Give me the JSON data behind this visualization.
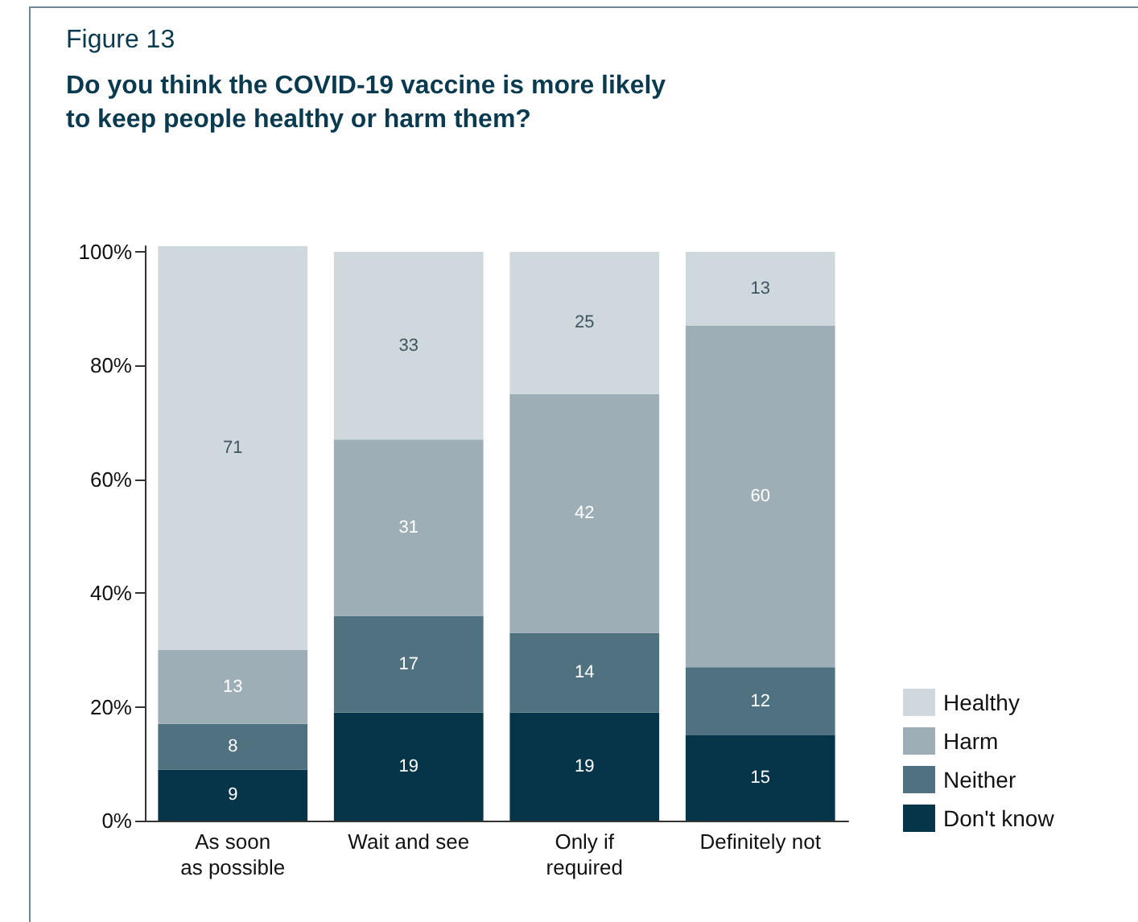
{
  "chart_data": {
    "type": "bar",
    "stacked": true,
    "title": "Figure 13",
    "subtitle": "Do you think the COVID-19 vaccine is more likely\nto keep people healthy or harm them?",
    "categories": [
      "As soon\nas possible",
      "Wait and see",
      "Only if\nrequired",
      "Definitely not"
    ],
    "series": [
      {
        "name": "Don't know",
        "color": "#06354a",
        "values": [
          9,
          19,
          19,
          15
        ]
      },
      {
        "name": "Neither",
        "color": "#4f7180",
        "values": [
          8,
          17,
          14,
          12
        ]
      },
      {
        "name": "Harm",
        "color": "#9daeb6",
        "values": [
          13,
          31,
          42,
          60
        ]
      },
      {
        "name": "Healthy",
        "color": "#cfd8dd",
        "values": [
          71,
          33,
          25,
          13
        ]
      }
    ],
    "ylim": [
      0,
      101
    ],
    "yticks": [
      {
        "value": 0,
        "label": "0%"
      },
      {
        "value": 20,
        "label": "20%"
      },
      {
        "value": 40,
        "label": "40%"
      },
      {
        "value": 60,
        "label": "60%"
      },
      {
        "value": 80,
        "label": "80%"
      },
      {
        "value": 100,
        "label": "100%"
      }
    ],
    "data_labels": true,
    "grid": false,
    "legend": "bottom right"
  }
}
